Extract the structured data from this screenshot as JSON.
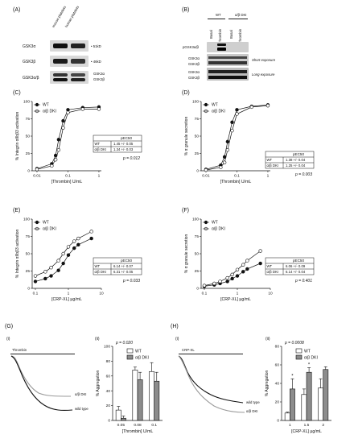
{
  "labels": {
    "A": "(A)",
    "B": "(B)",
    "C": "(C)",
    "D": "(D)",
    "E": "(E)",
    "F": "(F)",
    "G": "(G)",
    "H": "(H)",
    "i": "(i)",
    "ii": "(ii)"
  },
  "panel_a": {
    "lanes": [
      "mouse platelets",
      "human platelets"
    ],
    "rows": [
      "GSK3α",
      "GSK3β",
      "GSK3α/β"
    ],
    "mw": [
      "51kD",
      "46kD"
    ],
    "right_labels": [
      "GSK3α",
      "GSK3β"
    ]
  },
  "panel_b": {
    "groups": [
      "WT",
      "α/β DKI"
    ],
    "lanes": [
      "Basal",
      "Thrombin",
      "Basal",
      "Thrombin"
    ],
    "rows": [
      "pGSK3α/β",
      "GSK3α",
      "GSK3β",
      "GSK3α",
      "GSK3β"
    ],
    "exposures": [
      "Short exposure",
      "Long exposure"
    ]
  },
  "legend": {
    "wt": "WT",
    "dki": "α/β DKI"
  },
  "chart_data": [
    {
      "panel": "C",
      "type": "line",
      "ylabel": "% Integrin αIIbβ3 activation",
      "xlabel": "[Thrombin] U/mL",
      "xscale": "log",
      "xticks": [
        "0.01",
        "0.1",
        "1"
      ],
      "xlim": [
        0.007,
        1.2
      ],
      "yticks": [
        "0",
        "25",
        "50",
        "75",
        "100"
      ],
      "ylim": [
        0,
        100
      ],
      "series": [
        {
          "name": "WT",
          "x": [
            0.01,
            0.03,
            0.04,
            0.05,
            0.07,
            0.1,
            0.3,
            1
          ],
          "y": [
            3,
            10,
            22,
            45,
            72,
            88,
            91,
            92
          ]
        },
        {
          "name": "α/β DKI",
          "x": [
            0.01,
            0.03,
            0.04,
            0.05,
            0.07,
            0.1,
            0.3,
            1
          ],
          "y": [
            2,
            7,
            16,
            30,
            62,
            84,
            89,
            89
          ]
        }
      ],
      "ec50_header": "pEC50",
      "ec50_rows": [
        [
          "WT",
          "1.45 +/- 0.05"
        ],
        [
          "α/β DKI",
          "1.34 +/- 0.03"
        ]
      ],
      "p": "p = 0.012"
    },
    {
      "panel": "D",
      "type": "line",
      "ylabel": "% α granule secretion",
      "xlabel": "[Thrombin] U/mL",
      "xscale": "log",
      "xticks": [
        "0.01",
        "0.1",
        "1"
      ],
      "xlim": [
        0.007,
        1.2
      ],
      "yticks": [
        "0",
        "25",
        "50",
        "75",
        "100"
      ],
      "ylim": [
        0,
        100
      ],
      "series": [
        {
          "name": "WT",
          "x": [
            0.01,
            0.03,
            0.04,
            0.05,
            0.07,
            0.1,
            0.3,
            1
          ],
          "y": [
            2,
            8,
            20,
            42,
            70,
            88,
            93,
            95
          ]
        },
        {
          "name": "α/β DKI",
          "x": [
            0.01,
            0.03,
            0.04,
            0.05,
            0.07,
            0.1,
            0.3,
            1
          ],
          "y": [
            1,
            5,
            12,
            30,
            58,
            82,
            92,
            94
          ]
        }
      ],
      "ec50_header": "pEC50",
      "ec50_rows": [
        [
          "WT",
          "1.38 +/- 0.04"
        ],
        [
          "α/β DKI",
          "1.25 +/- 0.04"
        ]
      ],
      "p": "p = 0.003"
    },
    {
      "panel": "E",
      "type": "line",
      "ylabel": "% Integrin αIIbβ3 activation",
      "xlabel": "[CRP-XL] µg/mL",
      "xscale": "log",
      "xticks": [
        "0.1",
        "1",
        "10"
      ],
      "xlim": [
        0.08,
        10
      ],
      "yticks": [
        "0",
        "25",
        "50",
        "75",
        "100"
      ],
      "ylim": [
        0,
        100
      ],
      "series": [
        {
          "name": "WT",
          "x": [
            0.1,
            0.2,
            0.3,
            0.5,
            0.7,
            1,
            1.5,
            2,
            5
          ],
          "y": [
            10,
            14,
            18,
            26,
            36,
            48,
            58,
            63,
            72
          ]
        },
        {
          "name": "α/β DKI",
          "x": [
            0.1,
            0.2,
            0.3,
            0.5,
            0.7,
            1,
            1.5,
            2,
            5
          ],
          "y": [
            18,
            24,
            30,
            40,
            50,
            60,
            68,
            72,
            82
          ]
        }
      ],
      "ec50_header": "pEC50",
      "ec50_rows": [
        [
          "WT",
          "6.14 +/- 0.07"
        ],
        [
          "α/β DKI",
          "6.31 +/- 0.05"
        ]
      ],
      "p": "p = 0.033"
    },
    {
      "panel": "F",
      "type": "line",
      "ylabel": "% α granule secretion",
      "xlabel": "[CRP-XL] µg/mL",
      "xscale": "log",
      "xticks": [
        "0.1",
        "1",
        "10"
      ],
      "xlim": [
        0.08,
        10
      ],
      "yticks": [
        "0",
        "25",
        "50",
        "75",
        "100"
      ],
      "ylim": [
        0,
        100
      ],
      "series": [
        {
          "name": "WT",
          "x": [
            0.1,
            0.2,
            0.3,
            0.5,
            0.7,
            1,
            1.5,
            2,
            5
          ],
          "y": [
            3,
            5,
            7,
            10,
            14,
            18,
            24,
            28,
            36
          ]
        },
        {
          "name": "α/β DKI",
          "x": [
            0.1,
            0.2,
            0.3,
            0.5,
            0.7,
            1,
            1.5,
            2,
            5
          ],
          "y": [
            4,
            7,
            10,
            15,
            20,
            27,
            34,
            40,
            54
          ]
        }
      ],
      "ec50_header": "pEC50",
      "ec50_rows": [
        [
          "WT",
          "6.06 +/- 0.09"
        ],
        [
          "α/β DKI",
          "6.14 +/- 0.04"
        ]
      ],
      "p": "p = 0.401"
    },
    {
      "panel": "G(ii)",
      "type": "bar",
      "ylabel": "% Aggregation",
      "xlabel": "[Thrombin] U/mL",
      "categories": [
        "0.05",
        "0.08",
        "0.1"
      ],
      "yticks": [
        "0",
        "20",
        "40",
        "60",
        "80",
        "100"
      ],
      "ylim": [
        0,
        100
      ],
      "series": [
        {
          "name": "WT",
          "values": [
            14,
            68,
            66
          ],
          "errors": [
            5,
            4,
            12
          ]
        },
        {
          "name": "α/β DKI",
          "values": [
            3,
            55,
            53
          ],
          "errors": [
            3,
            10,
            12
          ]
        }
      ],
      "p": "p = 0.020"
    },
    {
      "panel": "H(ii)",
      "type": "bar",
      "ylabel": "% Aggregation",
      "xlabel": "[CRP-XL] µg/mL",
      "categories": [
        "1",
        "1.5",
        "2"
      ],
      "yticks": [
        "0",
        "20",
        "40",
        "60",
        "80"
      ],
      "ylim": [
        0,
        80
      ],
      "series": [
        {
          "name": "WT",
          "values": [
            8,
            28,
            35
          ],
          "errors": [
            1,
            6,
            10
          ]
        },
        {
          "name": "α/β DKI",
          "values": [
            34,
            52,
            55
          ],
          "errors": [
            11,
            5,
            3
          ]
        }
      ],
      "p": "p = 0.0008",
      "sig_marks": [
        "*",
        "*"
      ]
    }
  ],
  "panel_g": {
    "agonist": "Thrombin",
    "trace_labels": [
      "α/β DKI",
      "wild type"
    ]
  },
  "panel_h": {
    "agonist": "CRP-XL",
    "trace_labels": [
      "wild type",
      "α/β DKI"
    ]
  },
  "colors": {
    "dki_fill": "#8c8c8c",
    "wt_fill": "#ffffff",
    "grey_trace": "#9a9a9a"
  }
}
